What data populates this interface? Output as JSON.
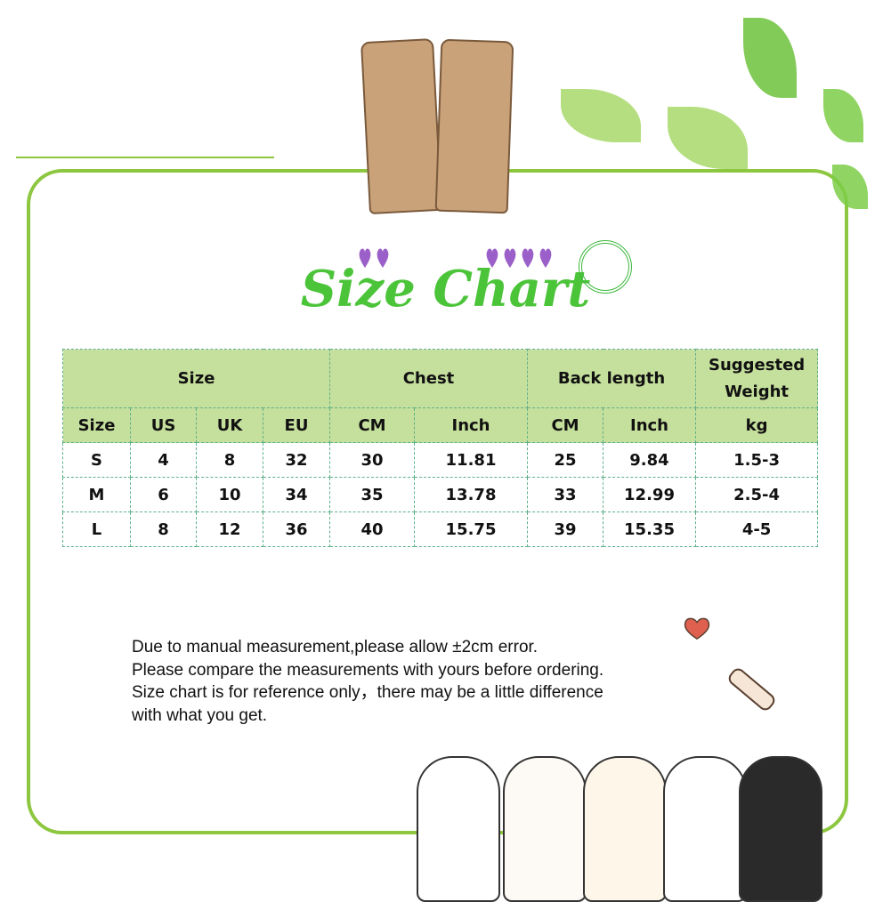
{
  "title": "Size Chart",
  "table": {
    "group_headers": [
      "Size",
      "Chest",
      "Back length",
      "Suggested Weight"
    ],
    "sub_headers": [
      "Size",
      "US",
      "UK",
      "EU",
      "CM",
      "Inch",
      "CM",
      "Inch",
      "kg"
    ],
    "rows": [
      [
        "S",
        "4",
        "8",
        "32",
        "30",
        "11.81",
        "25",
        "9.84",
        "1.5-3"
      ],
      [
        "M",
        "6",
        "10",
        "34",
        "35",
        "13.78",
        "33",
        "12.99",
        "2.5-4"
      ],
      [
        "L",
        "8",
        "12",
        "36",
        "40",
        "15.75",
        "39",
        "15.35",
        "4-5"
      ]
    ]
  },
  "notes": [
    "Due to manual measurement,please allow ±2cm error.",
    "Please compare the measurements with yours before ordering.",
    "Size chart is for reference only，there may be a little difference",
    "with what you get."
  ],
  "colors": {
    "frame": "#8dc63f",
    "header_bg": "#c5df9c",
    "title": "#4cc43a"
  }
}
